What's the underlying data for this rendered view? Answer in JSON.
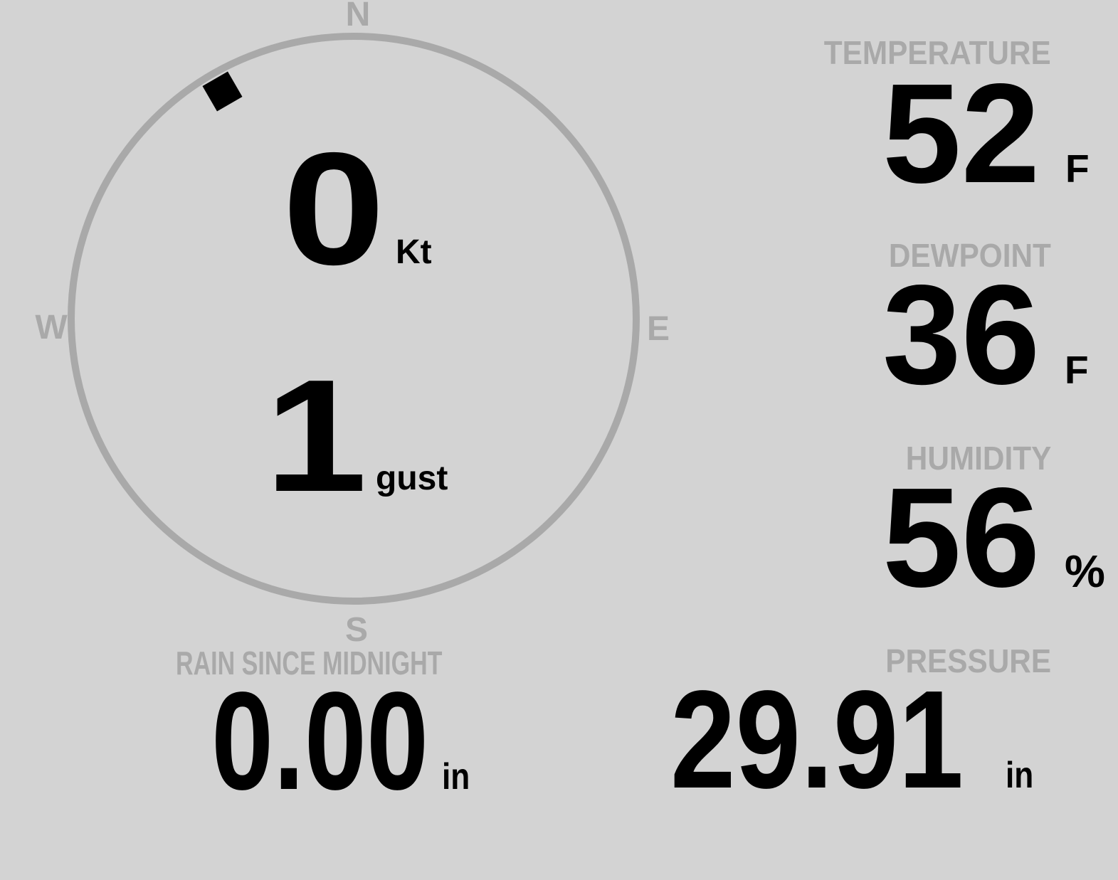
{
  "theme": {
    "background": "#d3d3d3",
    "muted_gray": "#a9a9a9",
    "value_black": "#000000"
  },
  "compass": {
    "cardinal_labels": {
      "north": "N",
      "east": "E",
      "south": "S",
      "west": "W"
    },
    "wind_direction_deg": 330,
    "speed": {
      "value": "0",
      "unit": "Kt"
    },
    "gust": {
      "value": "1",
      "unit": "gust"
    }
  },
  "readings": {
    "temperature": {
      "label": "TEMPERATURE",
      "value": "52",
      "unit": "F"
    },
    "dewpoint": {
      "label": "DEWPOINT",
      "value": "36",
      "unit": "F"
    },
    "humidity": {
      "label": "HUMIDITY",
      "value": "56",
      "unit": "%"
    },
    "rain": {
      "label": "RAIN SINCE MIDNIGHT",
      "value": "0.00",
      "unit": "in"
    },
    "pressure": {
      "label": "PRESSURE",
      "value": "29.91",
      "unit": "in"
    }
  }
}
